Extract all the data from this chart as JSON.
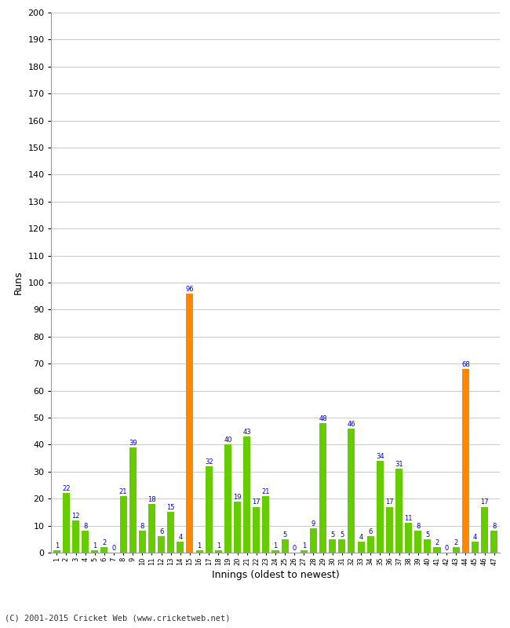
{
  "innings": [
    1,
    2,
    3,
    4,
    5,
    6,
    7,
    8,
    9,
    10,
    11,
    12,
    13,
    14,
    15,
    16,
    17,
    18,
    19,
    20,
    21,
    22,
    23,
    24,
    25,
    26,
    27,
    28,
    29,
    30,
    31,
    32,
    33,
    34,
    35,
    36,
    37,
    38,
    39,
    40,
    41,
    42,
    43,
    44,
    45,
    46,
    47
  ],
  "runs": [
    1,
    22,
    12,
    8,
    1,
    2,
    0,
    21,
    39,
    8,
    18,
    6,
    15,
    4,
    96,
    1,
    32,
    1,
    40,
    19,
    43,
    17,
    21,
    1,
    5,
    0,
    1,
    9,
    48,
    5,
    5,
    46,
    4,
    6,
    34,
    17,
    31,
    11,
    8,
    5,
    2,
    0,
    2,
    68,
    4,
    17,
    8
  ],
  "colors": [
    "#66cc00",
    "#66cc00",
    "#66cc00",
    "#66cc00",
    "#66cc00",
    "#66cc00",
    "#66cc00",
    "#66cc00",
    "#66cc00",
    "#66cc00",
    "#66cc00",
    "#66cc00",
    "#66cc00",
    "#66cc00",
    "#ff8800",
    "#66cc00",
    "#66cc00",
    "#66cc00",
    "#66cc00",
    "#66cc00",
    "#66cc00",
    "#66cc00",
    "#66cc00",
    "#66cc00",
    "#66cc00",
    "#66cc00",
    "#66cc00",
    "#66cc00",
    "#66cc00",
    "#66cc00",
    "#66cc00",
    "#66cc00",
    "#66cc00",
    "#66cc00",
    "#66cc00",
    "#66cc00",
    "#66cc00",
    "#66cc00",
    "#66cc00",
    "#66cc00",
    "#66cc00",
    "#66cc00",
    "#66cc00",
    "#ff8800",
    "#66cc00",
    "#66cc00",
    "#66cc00"
  ],
  "xlabel": "Innings (oldest to newest)",
  "ylabel": "Runs",
  "ylim": [
    0,
    200
  ],
  "yticks": [
    0,
    10,
    20,
    30,
    40,
    50,
    60,
    70,
    80,
    90,
    100,
    110,
    120,
    130,
    140,
    150,
    160,
    170,
    180,
    190,
    200
  ],
  "bg_color": "#ffffff",
  "grid_color": "#cccccc",
  "label_color": "#0000cc",
  "footer": "(C) 2001-2015 Cricket Web (www.cricketweb.net)"
}
